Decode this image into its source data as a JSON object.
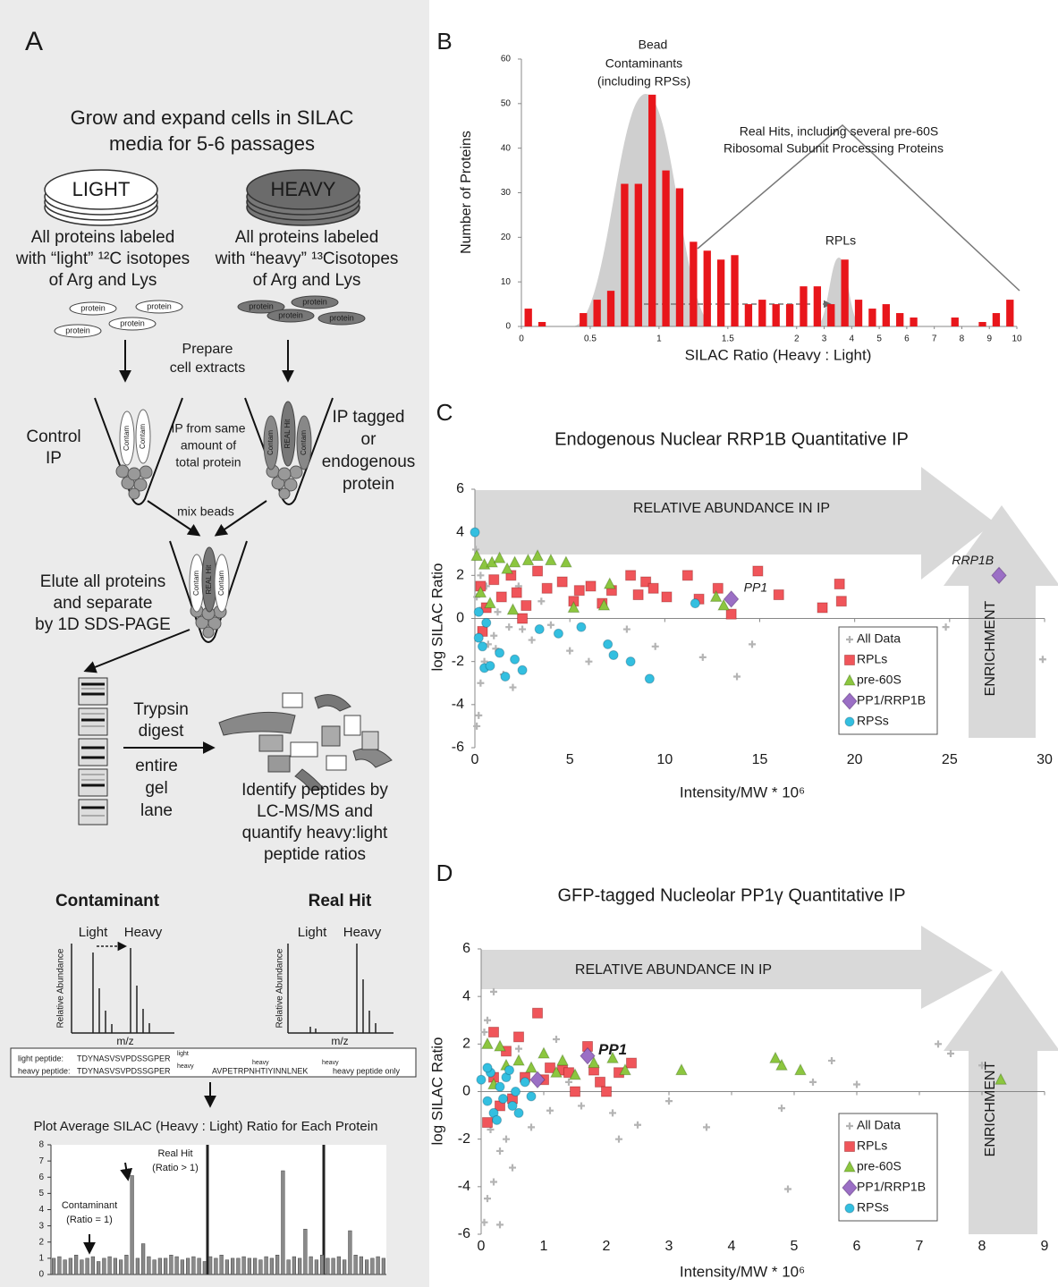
{
  "panel_a": {
    "label": "A",
    "heading": [
      "Grow and expand cells in SILAC",
      "media for 5-6 passages"
    ],
    "light_dish": "LIGHT",
    "heavy_dish": "HEAVY",
    "light_text": [
      "All proteins labeled",
      "with “light” ¹²C isotopes",
      "of Arg and Lys"
    ],
    "heavy_text": [
      "All proteins labeled",
      "with “heavy” ¹³Cisotopes",
      "of Arg and Lys"
    ],
    "proteins": [
      "protein",
      "protein",
      "protein",
      "protein",
      "protein",
      "protein",
      "protein",
      "protein"
    ],
    "prepare": [
      "Prepare",
      "cell extracts"
    ],
    "control_ip": [
      "Control",
      "IP"
    ],
    "ip_same": [
      "IP from same",
      "amount of",
      "total protein"
    ],
    "ip_tagged": [
      "IP tagged",
      "or",
      "endogenous",
      "protein"
    ],
    "tube_left": [
      "Contam",
      "Contam"
    ],
    "tube_right": [
      "Contam",
      "REAL Hit",
      "Contam"
    ],
    "tube_mixed": [
      "Contam",
      "REAL Hit",
      "Contam"
    ],
    "mix_beads": "mix beads",
    "elute": [
      "Elute all proteins",
      "and separate",
      "by 1D SDS-PAGE"
    ],
    "trypsin": [
      "Trypsin",
      "digest"
    ],
    "entire": [
      "entire",
      "gel",
      "lane"
    ],
    "identify": [
      "Identify peptides by",
      "LC-MS/MS and",
      "quantify heavy:light",
      "peptide ratios"
    ],
    "contaminant": "Contaminant",
    "real_hit": "Real Hit",
    "spectra": [
      {
        "light": "Light",
        "heavy": "Heavy",
        "y_label": "Relative Abundance",
        "x_label": "m/z"
      },
      {
        "light": "Light",
        "heavy": "Heavy",
        "y_label": "Relative Abundance",
        "x_label": "m/z"
      }
    ],
    "peptides": {
      "light_label": "light peptide:",
      "light_seq": "TDYNASVSVPDSSGPER",
      "light_sup": "light",
      "heavy_label": "heavy peptide:",
      "heavy_seq": "TDYNASVSVPDSSGPER",
      "heavy_sup": "heavy",
      "seq2": "AVPETRPNHTIYINNLNEK",
      "seq2_sup1": "heavy",
      "seq2_sup2": "heavy",
      "heavy_only": "heavy peptide only"
    },
    "plot_title": "Plot Average SILAC (Heavy : Light) Ratio for Each Protein"
  },
  "chart_data": [
    {
      "type": "histogram",
      "label": "B",
      "xlabel": "SILAC Ratio (Heavy : Light)",
      "ylabel": "Number of Proteins",
      "annotations": [
        "Bead",
        "Contaminants",
        "(including RPSs)",
        "Real Hits, including several pre-60S",
        "Ribosomal Subunit Processing Proteins",
        "RPLs"
      ],
      "bins": [
        0,
        0.1,
        0.2,
        0.3,
        0.4,
        0.5,
        0.6,
        0.7,
        0.8,
        0.9,
        1,
        1.1,
        1.2,
        1.3,
        1.4,
        1.5,
        1.6,
        1.7,
        1.8,
        1.9,
        2,
        2.5,
        3,
        3.5,
        4,
        4.5,
        5,
        5.5,
        6,
        6.5,
        7,
        7.5,
        8,
        8.5,
        9,
        9.5,
        10
      ],
      "values": [
        4,
        1,
        0,
        0,
        3,
        6,
        8,
        32,
        32,
        52,
        35,
        31,
        19,
        17,
        15,
        16,
        5,
        6,
        5,
        5,
        9,
        9,
        5,
        15,
        6,
        4,
        5,
        3,
        2,
        0,
        0,
        2,
        0,
        1,
        3,
        6
      ],
      "color": "#e8161b",
      "xscale": "bin-uniform",
      "xlim": [
        0,
        10
      ],
      "xticks": [
        0,
        0.5,
        1,
        1.5,
        2,
        3,
        4,
        5,
        6,
        7,
        8,
        9,
        10
      ],
      "ylim": [
        0,
        60
      ],
      "yticks": [
        0,
        10,
        20,
        30,
        40,
        50,
        60
      ]
    },
    {
      "type": "scatter",
      "label": "C",
      "title": "Endogenous Nuclear RRP1B Quantitative IP",
      "xlabel": "Intensity/MW * 10⁶",
      "ylabel": "log SILAC Ratio",
      "arrow_labels": [
        "RELATIVE ABUNDANCE IN IP",
        "ENRICHMENT"
      ],
      "point_labels": [
        "PP1",
        "RRP1B"
      ],
      "xlim": [
        0,
        30
      ],
      "xticks": [
        0,
        5,
        10,
        15,
        20,
        25,
        30
      ],
      "ylim": [
        -6,
        6
      ],
      "yticks": [
        -6,
        -4,
        -2,
        0,
        2,
        4,
        6
      ],
      "legend": "lower right",
      "series": [
        {
          "name": "All Data",
          "color": "#b4b4b4",
          "marker": "plus",
          "x": [
            0.1,
            0.2,
            0.3,
            0.5,
            0.7,
            1.0,
            1.5,
            2.0,
            2.5,
            3.0,
            4.0,
            5.0,
            6.0,
            0.1,
            0.3,
            0.4,
            1.2,
            1.8,
            2.3,
            3.5,
            8.0,
            9.5,
            12.0,
            13.8,
            14.6,
            24.8,
            29.9,
            0.05,
            0.6,
            1.1
          ],
          "values": [
            -5,
            -4.5,
            -3,
            -2,
            -1.2,
            -0.8,
            -2.6,
            -3.2,
            -0.5,
            -1.0,
            -0.3,
            -1.5,
            -2.0,
            1.0,
            2.0,
            0.5,
            0.3,
            -0.4,
            1.5,
            0.8,
            -0.5,
            -1.3,
            -1.8,
            -2.7,
            -1.2,
            -0.4,
            -1.9,
            3.2,
            1.5,
            -1.4
          ]
        },
        {
          "name": "RPLs",
          "color": "#f0555a",
          "marker": "square",
          "x": [
            0.3,
            0.6,
            1.0,
            1.4,
            1.9,
            2.2,
            2.7,
            3.3,
            3.8,
            4.6,
            5.2,
            5.5,
            6.1,
            6.7,
            7.2,
            8.2,
            8.6,
            9.0,
            9.4,
            10.1,
            11.2,
            11.8,
            12.8,
            13.5,
            14.9,
            16.0,
            18.3,
            19.2,
            19.3,
            0.4,
            2.5
          ],
          "values": [
            1.5,
            0.5,
            1.8,
            1.0,
            2.0,
            1.2,
            0.6,
            2.2,
            1.4,
            1.7,
            0.8,
            1.3,
            1.5,
            0.7,
            1.3,
            2.0,
            1.1,
            1.7,
            1.4,
            1.0,
            2.0,
            0.9,
            1.4,
            0.2,
            2.2,
            1.1,
            0.5,
            1.6,
            0.8,
            -0.6,
            0.0
          ]
        },
        {
          "name": "pre-60S",
          "color": "#8cc63f",
          "marker": "triangle",
          "x": [
            0.1,
            0.5,
            0.9,
            1.3,
            1.7,
            2.1,
            2.8,
            3.3,
            4.0,
            4.8,
            5.2,
            6.8,
            7.1,
            12.7,
            13.1,
            0.3,
            0.8,
            2.0
          ],
          "values": [
            2.9,
            2.5,
            2.6,
            2.8,
            2.3,
            2.6,
            2.7,
            2.9,
            2.7,
            2.6,
            0.5,
            0.6,
            1.6,
            1.0,
            0.6,
            1.2,
            0.7,
            0.4
          ]
        },
        {
          "name": "PP1/RRP1B",
          "color": "#9b6fc5",
          "marker": "diamond",
          "x": [
            13.5,
            27.6
          ],
          "values": [
            0.9,
            2.0
          ]
        },
        {
          "name": "RPSs",
          "color": "#33bfe0",
          "marker": "circle",
          "x": [
            0.0,
            0.2,
            0.4,
            0.5,
            0.8,
            1.3,
            1.6,
            2.1,
            2.5,
            3.4,
            4.4,
            5.6,
            7.0,
            7.3,
            8.2,
            9.2,
            11.6,
            0.2,
            0.6
          ],
          "values": [
            4.0,
            -0.9,
            -1.3,
            -2.3,
            -2.2,
            -1.6,
            -2.7,
            -1.9,
            -2.4,
            -0.5,
            -0.7,
            -0.4,
            -1.2,
            -1.7,
            -2.0,
            -2.8,
            0.7,
            0.3,
            -0.2
          ]
        }
      ]
    },
    {
      "type": "scatter",
      "label": "D",
      "title": "GFP-tagged Nucleolar PP1γ Quantitative IP",
      "xlabel": "Intensity/MW * 10⁶",
      "ylabel": "log SILAC Ratio",
      "arrow_labels": [
        "RELATIVE ABUNDANCE IN IP",
        "ENRICHMENT"
      ],
      "point_labels": [
        "PP1"
      ],
      "xlim": [
        0,
        9
      ],
      "xticks": [
        0,
        1,
        2,
        3,
        4,
        5,
        6,
        7,
        8,
        9
      ],
      "ylim": [
        -6,
        6
      ],
      "yticks": [
        -6,
        -4,
        -2,
        0,
        2,
        4,
        6
      ],
      "legend": "lower right",
      "series": [
        {
          "name": "All Data",
          "color": "#b4b4b4",
          "marker": "plus",
          "x": [
            0.05,
            0.1,
            0.2,
            0.3,
            0.4,
            0.5,
            0.8,
            1.1,
            1.6,
            2.1,
            2.5,
            3.0,
            4.9,
            4.8,
            5.6,
            5.3,
            7.3,
            7.5,
            8.0,
            0.1,
            0.2,
            0.05,
            0.6,
            1.2,
            2.2,
            3.6,
            6.0,
            0.3,
            0.15,
            1.4
          ],
          "values": [
            -5.5,
            -4.5,
            -3.8,
            -2.5,
            -2.0,
            -3.2,
            -1.5,
            -0.8,
            -0.6,
            -0.9,
            -1.4,
            -0.4,
            -4.1,
            -0.7,
            1.3,
            0.4,
            2.0,
            1.6,
            1.1,
            3.0,
            4.2,
            2.5,
            1.8,
            2.2,
            -2.0,
            -1.5,
            0.3,
            -5.6,
            -1.6,
            0.4
          ]
        },
        {
          "name": "RPLs",
          "color": "#f0555a",
          "marker": "square",
          "x": [
            0.1,
            0.2,
            0.2,
            0.4,
            0.6,
            0.7,
            0.9,
            1.0,
            1.1,
            1.3,
            1.4,
            1.5,
            1.7,
            1.8,
            1.9,
            2.0,
            2.2,
            2.4,
            0.5,
            0.3
          ],
          "values": [
            -1.3,
            0.6,
            2.5,
            1.7,
            2.3,
            0.6,
            3.3,
            0.5,
            1.0,
            0.9,
            0.8,
            0.0,
            1.9,
            0.9,
            0.4,
            0.0,
            0.8,
            1.2,
            -0.3,
            -0.6
          ]
        },
        {
          "name": "pre-60S",
          "color": "#8cc63f",
          "marker": "triangle",
          "x": [
            0.1,
            0.3,
            0.4,
            0.6,
            0.8,
            1.0,
            1.2,
            1.3,
            1.5,
            1.8,
            2.1,
            2.3,
            3.2,
            4.7,
            4.8,
            5.1,
            8.3,
            0.2
          ],
          "values": [
            2.0,
            1.9,
            1.1,
            1.3,
            1.0,
            1.6,
            0.8,
            1.3,
            0.7,
            1.2,
            1.4,
            0.9,
            0.9,
            1.4,
            1.1,
            0.9,
            0.5,
            0.3
          ]
        },
        {
          "name": "PP1/RRP1B",
          "color": "#9b6fc5",
          "marker": "diamond",
          "x": [
            1.7,
            0.9
          ],
          "values": [
            1.5,
            0.5
          ]
        },
        {
          "name": "RPSs",
          "color": "#33bfe0",
          "marker": "circle",
          "x": [
            0.0,
            0.1,
            0.15,
            0.2,
            0.3,
            0.35,
            0.4,
            0.5,
            0.55,
            0.6,
            0.7,
            0.8,
            0.1,
            0.25,
            0.45
          ],
          "values": [
            0.5,
            -0.4,
            0.8,
            -0.9,
            0.2,
            -0.3,
            0.6,
            -0.6,
            0.0,
            -0.9,
            0.4,
            -0.2,
            1.0,
            -1.2,
            0.9
          ]
        }
      ]
    },
    {
      "type": "bar",
      "annotations": [
        "Real Hit",
        "(Ratio > 1)",
        "Contaminant",
        "(Ratio = 1)"
      ],
      "categories": [
        null,
        null,
        null,
        null,
        null,
        null,
        null,
        null,
        null,
        null,
        null,
        null,
        null,
        null,
        null,
        null,
        null,
        null,
        null,
        null,
        null,
        null,
        null,
        null,
        null,
        null,
        null,
        null,
        null,
        null,
        null,
        null,
        null,
        null,
        null,
        null,
        null,
        null,
        null,
        null,
        null,
        null,
        null,
        null,
        null,
        null,
        null,
        null,
        null,
        null,
        null,
        null,
        null,
        null,
        null,
        null,
        null,
        null,
        null,
        null
      ],
      "values": [
        1.0,
        1.1,
        0.9,
        1.0,
        1.2,
        0.9,
        1.0,
        1.1,
        0.8,
        1.0,
        1.1,
        1.0,
        0.9,
        1.2,
        6.1,
        1.0,
        1.9,
        1.1,
        0.9,
        1.0,
        1.0,
        1.2,
        1.1,
        0.9,
        1.0,
        1.1,
        1.0,
        0.8,
        1.1,
        1.0,
        1.2,
        0.9,
        1.0,
        1.0,
        1.1,
        1.0,
        1.0,
        0.9,
        1.1,
        1.0,
        1.2,
        6.4,
        0.9,
        1.1,
        1.0,
        2.8,
        1.1,
        0.9,
        1.2,
        1.0,
        1.0,
        1.1,
        0.9,
        2.7,
        1.2,
        1.1,
        0.9,
        1.0,
        1.1,
        1.0
      ],
      "color": "#8a8a8a",
      "ylim": [
        0,
        8
      ],
      "yticks": [
        0,
        1,
        2,
        3,
        4,
        5,
        6,
        7,
        8
      ]
    }
  ]
}
